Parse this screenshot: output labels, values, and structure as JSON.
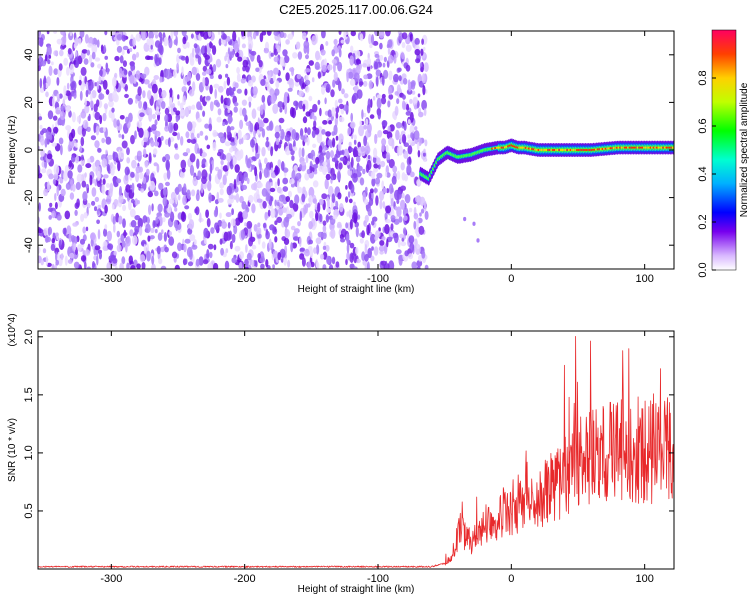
{
  "title": "C2E5.2025.117.00.06.G24",
  "chart_data": [
    {
      "type": "heatmap",
      "xlabel": "Height of straight line (km)",
      "ylabel": "Frequency (Hz)",
      "xlim": [
        -355,
        122
      ],
      "ylim": [
        -50,
        50
      ],
      "xticks": [
        -300,
        -200,
        -100,
        0,
        100
      ],
      "yticks": [
        -40,
        -20,
        0,
        20,
        40
      ],
      "grid": false,
      "colorbar": {
        "label": "Normalized spectral amplitude",
        "range": [
          0,
          1
        ],
        "ticks": [
          "0.0",
          "0.2",
          "0.4",
          "0.6",
          "0.8"
        ]
      },
      "noise_region": {
        "x": [
          -355,
          -68
        ],
        "amplitude": "low"
      },
      "signal_trace": {
        "x": [
          -68,
          -62,
          -55,
          -48,
          -40,
          -30,
          -20,
          -10,
          -5,
          0,
          5,
          10,
          20,
          40,
          60,
          80,
          100,
          122
        ],
        "frequency": [
          -10,
          -12,
          -4,
          -1,
          -3,
          -2,
          0,
          1,
          1,
          2,
          1,
          1,
          0,
          0,
          0,
          1,
          1,
          1
        ]
      },
      "stray_points": [
        {
          "x": -35,
          "frequency": -29
        },
        {
          "x": -28,
          "frequency": -31
        },
        {
          "x": -25,
          "frequency": -38
        }
      ]
    },
    {
      "type": "line",
      "xlabel": "Height of straight line (km)",
      "ylabel": "SNR (10 * v/v)",
      "y_multiplier": "(x10^4)",
      "xlim": [
        -355,
        122
      ],
      "ylim": [
        0,
        2.05
      ],
      "xticks": [
        -300,
        -200,
        -100,
        0,
        100
      ],
      "yticks": [
        "0.5",
        "1.0",
        "1.5",
        "2.0"
      ],
      "grid": false,
      "series": [
        {
          "color": "#e8292b",
          "x": [
            -355,
            -300,
            -200,
            -100,
            -60,
            -50,
            -45,
            -42,
            -40,
            -38,
            -35,
            -30,
            -25,
            -20,
            -15,
            -10,
            -5,
            0,
            5,
            10,
            20,
            30,
            40,
            50,
            60,
            70,
            80,
            90,
            100,
            110,
            122
          ],
          "y": [
            0.02,
            0.02,
            0.02,
            0.02,
            0.02,
            0.05,
            0.1,
            0.2,
            0.3,
            0.35,
            0.28,
            0.22,
            0.3,
            0.38,
            0.42,
            0.45,
            0.5,
            0.45,
            0.55,
            0.5,
            0.6,
            0.7,
            0.8,
            0.9,
            0.95,
            1.0,
            1.05,
            1.05,
            1.0,
            1.0,
            1.05
          ]
        }
      ]
    }
  ]
}
